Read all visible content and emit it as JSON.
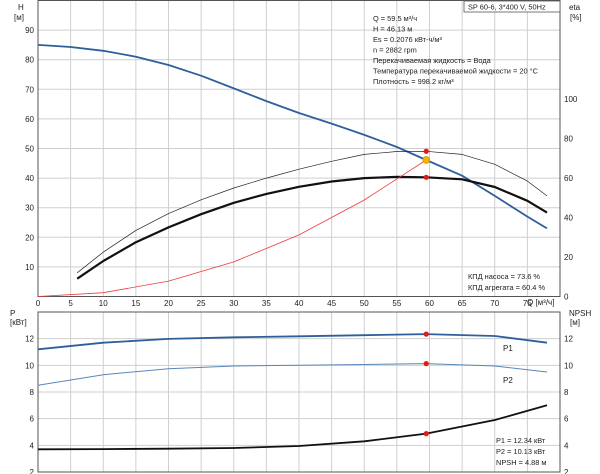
{
  "title": "SP 60-6, 3*400 V, 50Hz",
  "info": {
    "lines": [
      "Q = 59.5 м³/ч",
      "H = 46.13 м",
      "Es = 0.2076 кВт-ч/м³",
      "n = 2882 rpm",
      "Перекачиваемая жидкость = Вода",
      "Температура перекачиваемой жидкости = 20 °C",
      "Плотность = 998.2 кг/м³"
    ],
    "efficiency_lines": [
      "КПД насоса = 73.6 %",
      "КПД агрегата = 60.4 %"
    ],
    "power_lines": [
      "P1 = 12.34 кВт",
      "P2 = 10.13 кВт",
      "NPSH = 4.88 м"
    ]
  },
  "colors": {
    "head": "#2f5f9a",
    "efficiency": "#111111",
    "efficiency_thin": "#222222",
    "system": "#ee3b3b",
    "point_red": "#e11b1b",
    "duty_point": "#f5b300",
    "p1": "#2f5f9a",
    "p2": "#5a86ba",
    "npsh": "#111111"
  },
  "chart_data": [
    {
      "type": "line",
      "name": "head-efficiency",
      "ylabel_left": [
        "H",
        "[м]"
      ],
      "ylabel_right": [
        "eta",
        "[%]"
      ],
      "xlabel": "Q [м³/ч]",
      "xlim": [
        0,
        80
      ],
      "ylim_left": [
        0,
        100
      ],
      "ylim_right": [
        0,
        150
      ],
      "x_ticks": [
        0,
        5,
        10,
        15,
        20,
        25,
        30,
        35,
        40,
        45,
        50,
        55,
        60,
        65,
        70,
        75
      ],
      "y_ticks_left": [
        0,
        10,
        20,
        30,
        40,
        50,
        60,
        70,
        80,
        90
      ],
      "y_ticks_right": [
        0,
        20,
        40,
        60,
        80,
        100
      ],
      "series": [
        {
          "name": "H",
          "axis": "left",
          "color_key": "head",
          "x": [
            0,
            5,
            10,
            15,
            20,
            25,
            30,
            35,
            40,
            45,
            50,
            55,
            59.5,
            65,
            70,
            75,
            78
          ],
          "y": [
            85,
            84.3,
            83,
            81,
            78.2,
            74.6,
            70.3,
            66,
            62,
            58.4,
            54.6,
            50.5,
            46.13,
            40.8,
            34,
            27,
            23
          ]
        },
        {
          "name": "КПД агрегата",
          "axis": "right",
          "color_key": "efficiency",
          "x": [
            6,
            10,
            15,
            20,
            25,
            30,
            35,
            40,
            45,
            50,
            55,
            59.5,
            65,
            70,
            75,
            78
          ],
          "y": [
            9,
            18,
            27.5,
            35,
            41.7,
            47.5,
            52,
            55.6,
            58.3,
            60,
            60.6,
            60.4,
            59.4,
            55.5,
            48.5,
            42.5
          ]
        },
        {
          "name": "КПД насоса",
          "axis": "right",
          "color_key": "efficiency_thin",
          "x": [
            6,
            10,
            15,
            20,
            25,
            30,
            35,
            40,
            45,
            50,
            55,
            59.5,
            65,
            70,
            75,
            78
          ],
          "y": [
            12,
            22.5,
            33.5,
            42,
            49,
            55,
            60,
            64.5,
            68.5,
            72,
            73.5,
            73.6,
            72,
            67,
            58.5,
            51
          ]
        },
        {
          "name": "system",
          "axis": "left",
          "color_key": "system",
          "x": [
            0,
            10,
            20,
            30,
            40,
            50,
            59.5
          ],
          "y": [
            0,
            1.3,
            5.2,
            11.7,
            20.8,
            32.6,
            46.13
          ]
        }
      ],
      "points": [
        {
          "x": 59.5,
          "y": 46.13,
          "axis": "left",
          "color_key": "duty_point"
        },
        {
          "x": 59.5,
          "y": 73.6,
          "axis": "right",
          "color_key": "point_red"
        },
        {
          "x": 59.5,
          "y": 60.4,
          "axis": "right",
          "color_key": "point_red"
        }
      ]
    },
    {
      "type": "line",
      "name": "power-npsh",
      "ylabel_left": [
        "P",
        "[кВт]"
      ],
      "ylabel_right": [
        "NPSH",
        "[м]"
      ],
      "xlim": [
        0,
        80
      ],
      "ylim": [
        2,
        14
      ],
      "y_ticks_left": [
        2,
        4,
        6,
        8,
        10,
        12
      ],
      "y_ticks_right": [
        2,
        4,
        6,
        8,
        10,
        12
      ],
      "series": [
        {
          "name": "P1",
          "color_key": "p1",
          "x": [
            0,
            10,
            20,
            30,
            40,
            50,
            59.5,
            70,
            78
          ],
          "y": [
            11.2,
            11.7,
            11.98,
            12.1,
            12.18,
            12.26,
            12.34,
            12.2,
            11.7
          ]
        },
        {
          "name": "P2",
          "color_key": "p2",
          "x": [
            0,
            10,
            20,
            30,
            40,
            50,
            59.5,
            70,
            78
          ],
          "y": [
            8.5,
            9.3,
            9.75,
            9.95,
            10.0,
            10.06,
            10.13,
            9.95,
            9.5
          ]
        },
        {
          "name": "NPSH",
          "color_key": "npsh",
          "x": [
            0,
            10,
            20,
            30,
            40,
            50,
            59.5,
            70,
            78
          ],
          "y": [
            3.7,
            3.72,
            3.75,
            3.8,
            3.95,
            4.3,
            4.88,
            5.9,
            7.0
          ]
        }
      ],
      "points": [
        {
          "x": 59.5,
          "y": 12.34,
          "color_key": "point_red"
        },
        {
          "x": 59.5,
          "y": 10.13,
          "color_key": "point_red"
        },
        {
          "x": 59.5,
          "y": 4.88,
          "color_key": "point_red"
        }
      ]
    }
  ]
}
